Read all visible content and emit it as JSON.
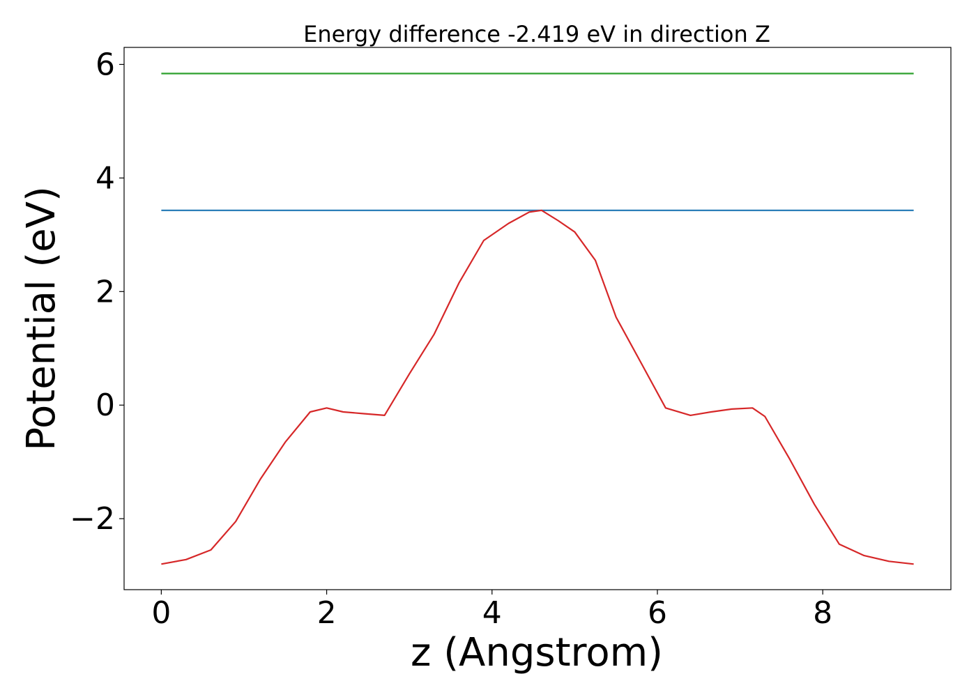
{
  "chart_data": {
    "type": "line",
    "title": "Energy difference -2.419 eV in direction Z",
    "xlabel": "z (Angstrom)",
    "ylabel": "Potential (eV)",
    "xlim": [
      -0.45,
      9.55
    ],
    "ylim": [
      -3.25,
      6.3
    ],
    "xticks": [
      0,
      2,
      4,
      6,
      8
    ],
    "xtick_labels": [
      "0",
      "2",
      "4",
      "6",
      "8"
    ],
    "yticks": [
      -2,
      0,
      2,
      4,
      6
    ],
    "ytick_labels": [
      "−2",
      "0",
      "2",
      "4",
      "6"
    ],
    "grid": false,
    "series": [
      {
        "color": "#2ca02c",
        "x": [
          0,
          9.1
        ],
        "y": [
          5.84,
          5.84
        ]
      },
      {
        "color": "#1f77b4",
        "x": [
          0,
          9.1
        ],
        "y": [
          3.43,
          3.43
        ]
      },
      {
        "color": "#d62728",
        "x": [
          0,
          0.3,
          0.6,
          0.9,
          1.2,
          1.5,
          1.8,
          2.0,
          2.2,
          2.45,
          2.7,
          3.0,
          3.3,
          3.6,
          3.9,
          4.2,
          4.45,
          4.6,
          4.8,
          5.0,
          5.25,
          5.5,
          5.8,
          6.1,
          6.4,
          6.65,
          6.9,
          7.15,
          7.3,
          7.6,
          7.9,
          8.2,
          8.5,
          8.8,
          9.1
        ],
        "y": [
          -2.8,
          -2.72,
          -2.55,
          -2.05,
          -1.3,
          -0.65,
          -0.12,
          -0.05,
          -0.12,
          -0.15,
          -0.18,
          0.55,
          1.25,
          2.15,
          2.9,
          3.2,
          3.4,
          3.43,
          3.25,
          3.05,
          2.55,
          1.55,
          0.75,
          -0.05,
          -0.18,
          -0.12,
          -0.07,
          -0.05,
          -0.2,
          -0.95,
          -1.75,
          -2.45,
          -2.65,
          -2.75,
          -2.8
        ]
      }
    ]
  }
}
